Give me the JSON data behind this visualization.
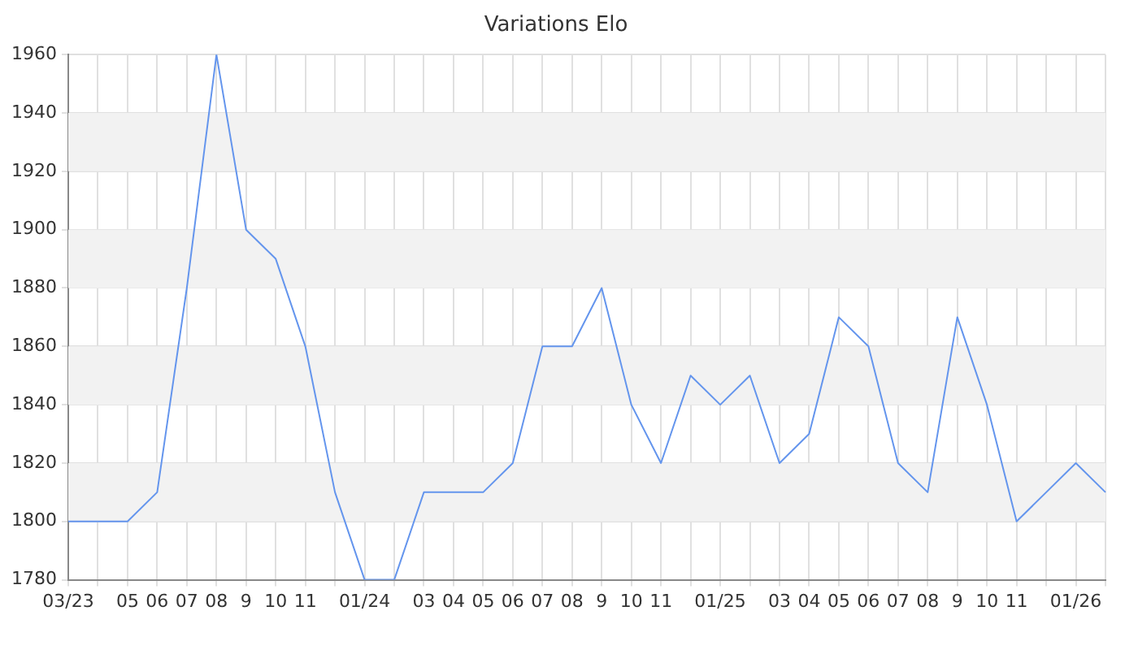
{
  "chart_data": {
    "type": "line",
    "title": "Variations Elo",
    "categories": [
      "03/23",
      null,
      "05",
      "06",
      "07",
      "08",
      "9",
      "10",
      "11",
      null,
      "01/24",
      null,
      "03",
      "04",
      "05",
      "06",
      "07",
      "08",
      "9",
      "10",
      "11",
      null,
      "01/25",
      null,
      "03",
      "04",
      "05",
      "06",
      "07",
      "08",
      "9",
      "10",
      "11",
      null,
      "01/26",
      null
    ],
    "series": [
      {
        "color": "#6495ed",
        "values": [
          1800,
          1800,
          1800,
          1810,
          1880,
          1960,
          1900,
          1890,
          1860,
          1810,
          1780,
          1780,
          1810,
          1810,
          1810,
          1820,
          1860,
          1860,
          1880,
          1840,
          1820,
          1850,
          1840,
          1850,
          1820,
          1830,
          1870,
          1860,
          1820,
          1810,
          1870,
          1840,
          1800,
          1810,
          1820,
          1810
        ]
      }
    ],
    "ylim": [
      1780,
      1960
    ],
    "yticks": [
      1780,
      1800,
      1820,
      1840,
      1860,
      1880,
      1900,
      1920,
      1940,
      1960
    ],
    "grid": true,
    "legend": false,
    "marker": "none",
    "line_style": "solid"
  }
}
